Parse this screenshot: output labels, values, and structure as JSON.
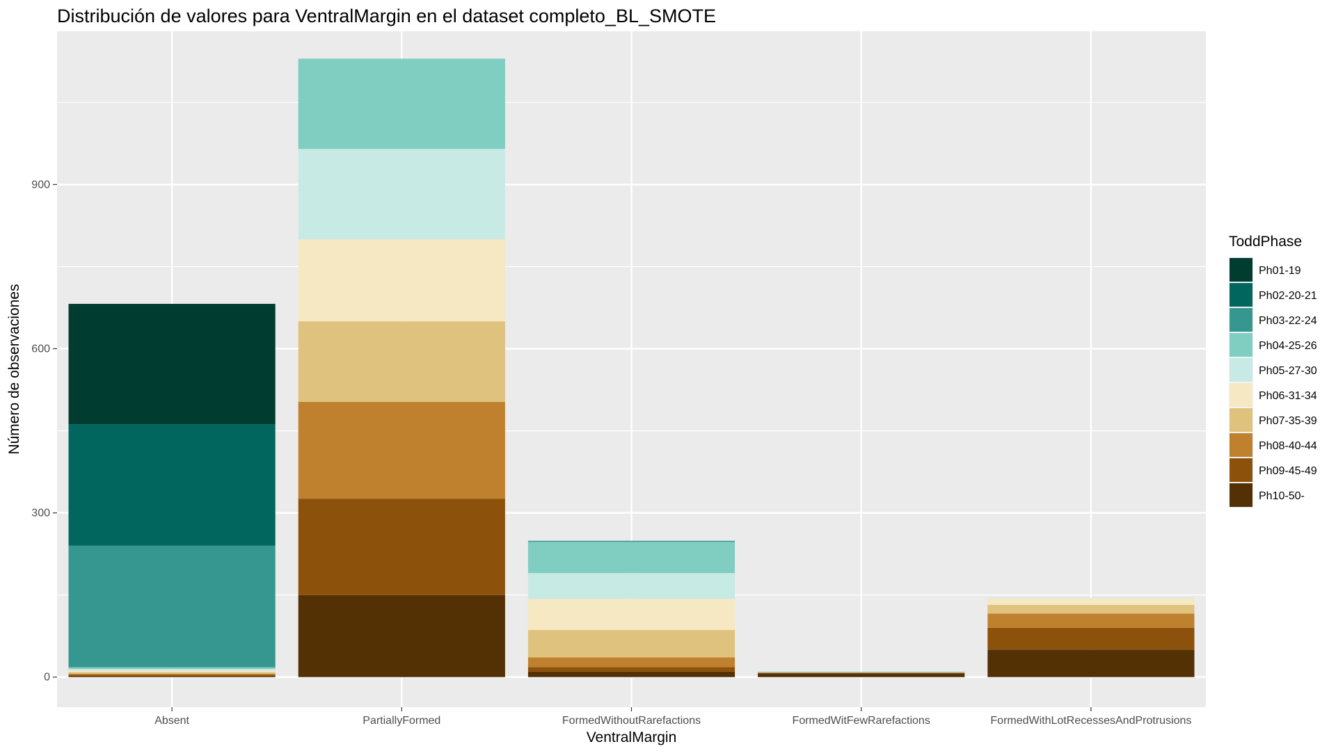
{
  "chart_data": {
    "type": "bar",
    "stacked": true,
    "title": "Distribución de valores para VentralMargin en el dataset completo_BL_SMOTE",
    "xlabel": "VentralMargin",
    "ylabel": "Número de observaciones",
    "ylim": [
      -55,
      1180
    ],
    "yticks": [
      0,
      300,
      600,
      900
    ],
    "grid": true,
    "legend_title": "ToddPhase",
    "legend_position": "right",
    "categories": [
      "Absent",
      "PartiallyFormed",
      "FormedWithoutRarefactions",
      "FormedWitFewRarefactions",
      "FormedWithLotRecessesAndProtrusions"
    ],
    "series": [
      {
        "name": "Ph01-19",
        "color": "#003C30",
        "values": [
          220,
          0,
          0,
          0,
          0
        ]
      },
      {
        "name": "Ph02-20-21",
        "color": "#01665E",
        "values": [
          222,
          0,
          0,
          0,
          0
        ]
      },
      {
        "name": "Ph03-22-24",
        "color": "#35978F",
        "values": [
          222,
          0,
          2,
          0,
          0
        ]
      },
      {
        "name": "Ph04-25-26",
        "color": "#80CDC1",
        "values": [
          3,
          165,
          57,
          1,
          0
        ]
      },
      {
        "name": "Ph05-27-30",
        "color": "#C7EAE5",
        "values": [
          3,
          165,
          47,
          0,
          1
        ]
      },
      {
        "name": "Ph06-31-34",
        "color": "#F6E8C3",
        "values": [
          3,
          150,
          57,
          1,
          12
        ]
      },
      {
        "name": "Ph07-35-39",
        "color": "#DFC27D",
        "values": [
          3,
          147,
          50,
          0,
          16
        ]
      },
      {
        "name": "Ph08-40-44",
        "color": "#BF812D",
        "values": [
          2,
          177,
          18,
          0,
          26
        ]
      },
      {
        "name": "Ph09-45-49",
        "color": "#8C510A",
        "values": [
          2,
          176,
          8,
          1,
          40
        ]
      },
      {
        "name": "Ph10-50-",
        "color": "#543005",
        "values": [
          2,
          150,
          10,
          7,
          50
        ]
      }
    ]
  }
}
